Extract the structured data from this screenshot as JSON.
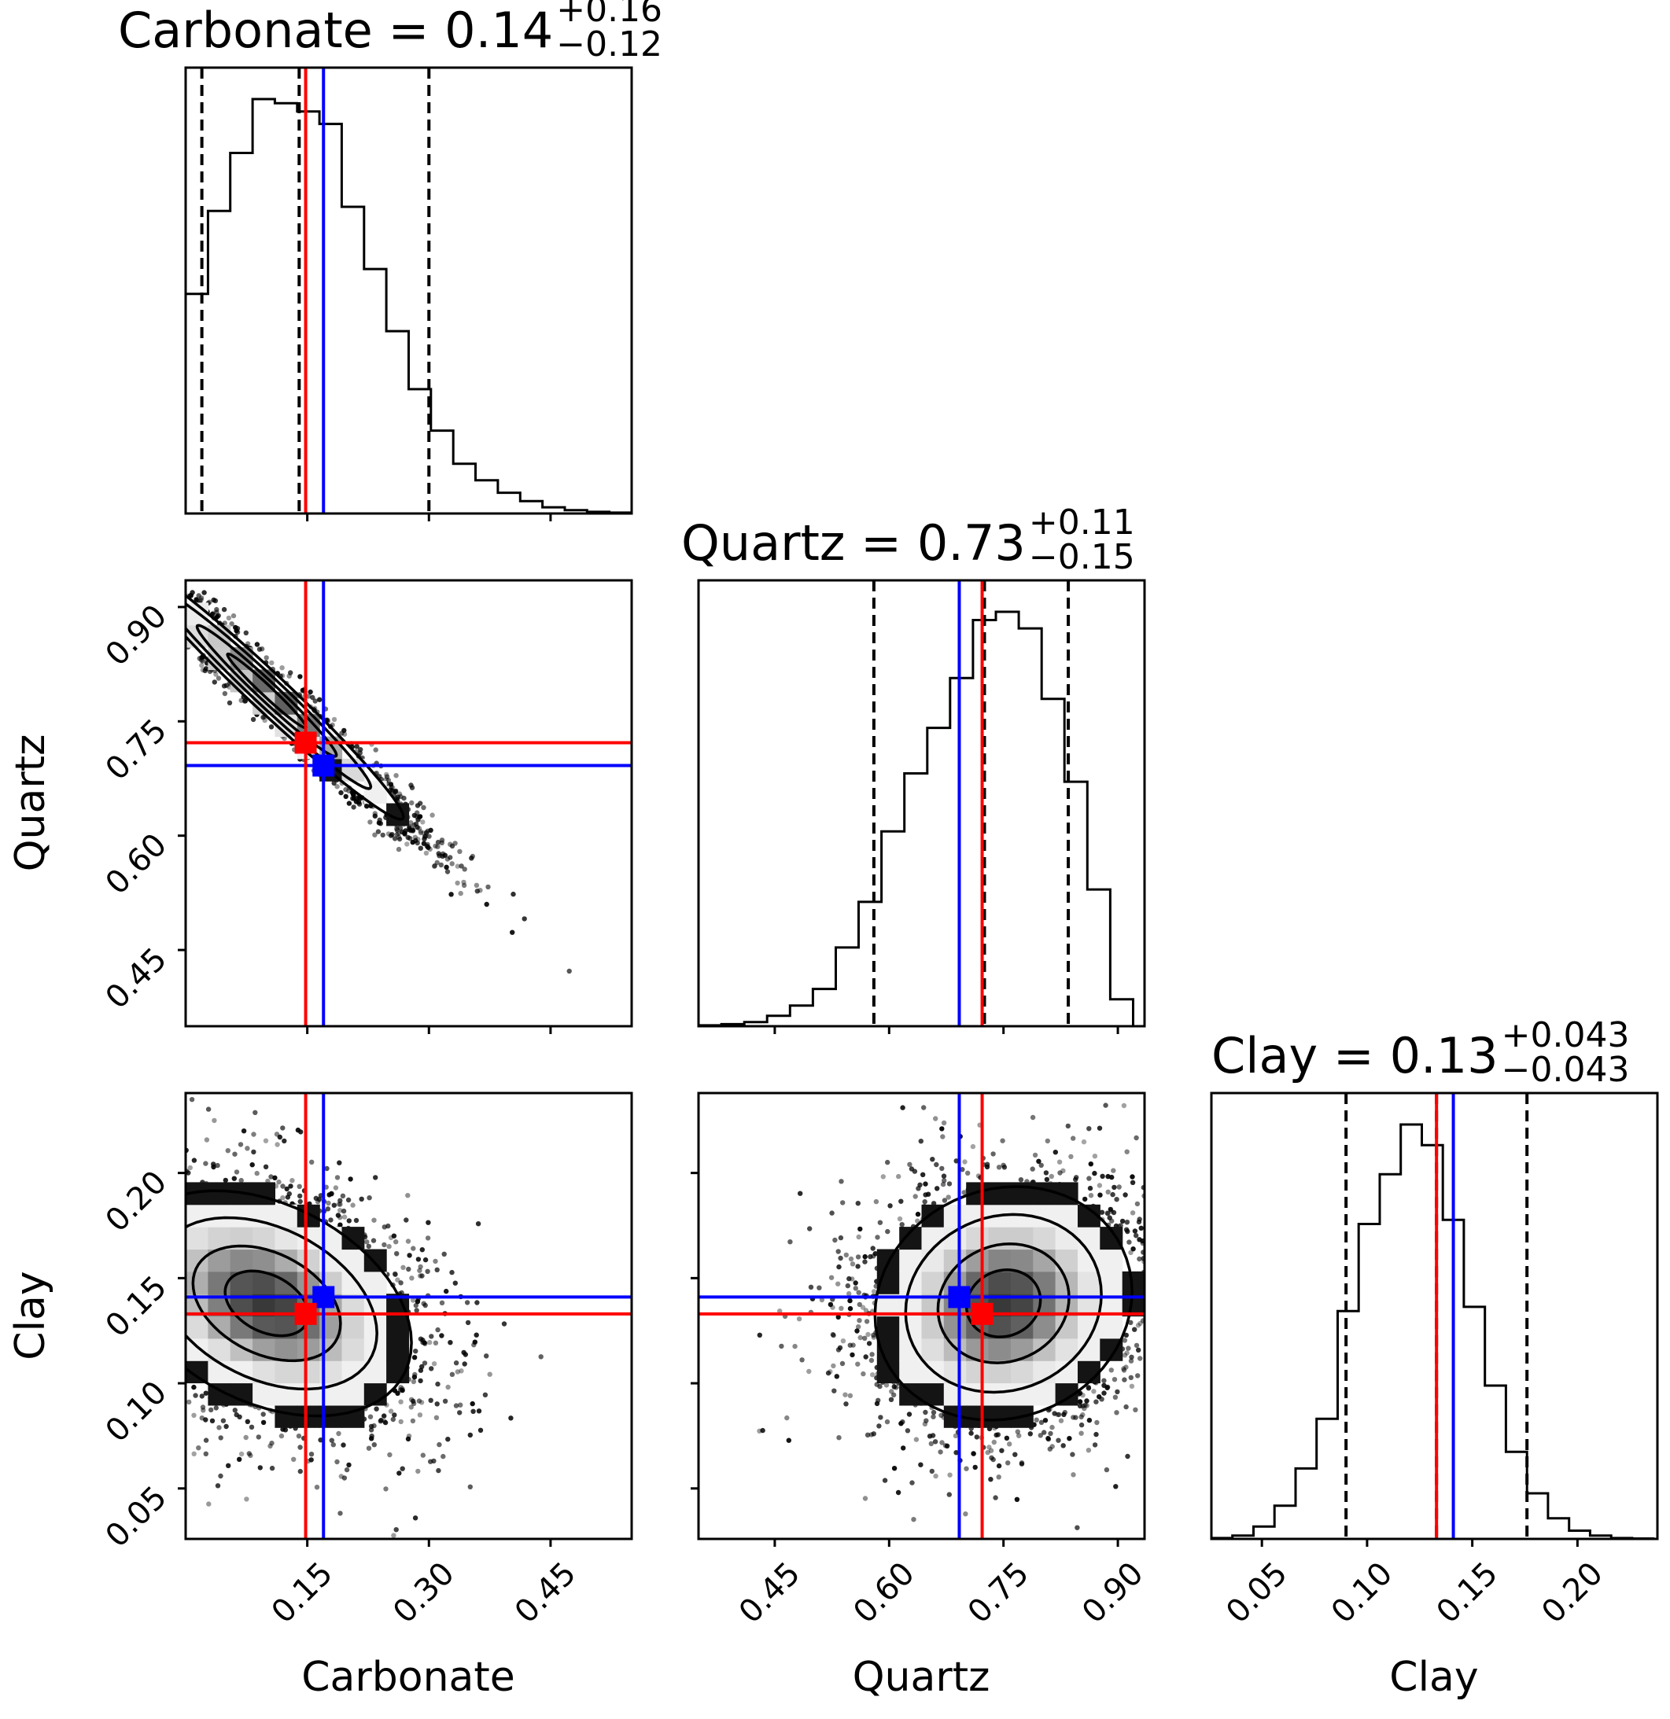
{
  "chart_data": {
    "type": "corner",
    "parameters": [
      "Carbonate",
      "Quartz",
      "Clay"
    ],
    "colors": {
      "truth": "#ff0000",
      "estimate": "#0000ff",
      "hist": "#000000",
      "quantile": "#000000"
    },
    "titles": [
      {
        "param": "Carbonate",
        "prefix": "Carbonate = ",
        "value": "0.14",
        "plus": "+0.16",
        "minus": "−0.12"
      },
      {
        "param": "Quartz",
        "prefix": "Quartz = ",
        "value": "0.73",
        "plus": "+0.11",
        "minus": "−0.15"
      },
      {
        "param": "Clay",
        "prefix": "Clay = ",
        "value": "0.13",
        "plus": "+0.043",
        "minus": "−0.043"
      }
    ],
    "ranges": {
      "Carbonate": [
        0.0,
        0.55
      ],
      "Quartz": [
        0.35,
        0.935
      ],
      "Clay": [
        0.026,
        0.238
      ]
    },
    "ticks": {
      "Carbonate": {
        "values": [
          0.15,
          0.3,
          0.45
        ],
        "labels": [
          "0.15",
          "0.30",
          "0.45"
        ]
      },
      "Quartz": {
        "values": [
          0.45,
          0.6,
          0.75,
          0.9
        ],
        "labels": [
          "0.45",
          "0.60",
          "0.75",
          "0.90"
        ]
      },
      "Clay": {
        "values": [
          0.05,
          0.1,
          0.15,
          0.2
        ],
        "labels": [
          "0.05",
          "0.10",
          "0.15",
          "0.20"
        ]
      }
    },
    "truth": {
      "Carbonate": 0.148,
      "Quartz": 0.722,
      "Clay": 0.133
    },
    "estimate": {
      "Carbonate": 0.17,
      "Quartz": 0.692,
      "Clay": 0.141
    },
    "quantiles": {
      "Carbonate": [
        0.02,
        0.14,
        0.3
      ],
      "Quartz": [
        0.58,
        0.725,
        0.835
      ],
      "Clay": [
        0.09,
        0.133,
        0.176
      ]
    },
    "histograms": {
      "Carbonate": {
        "edges": [
          0.0,
          0.0275,
          0.055,
          0.0825,
          0.11,
          0.1375,
          0.165,
          0.1925,
          0.22,
          0.2475,
          0.275,
          0.3025,
          0.33,
          0.3575,
          0.385,
          0.4125,
          0.44,
          0.4675,
          0.495,
          0.5225,
          0.55
        ],
        "counts": [
          0.53,
          0.73,
          0.87,
          1.0,
          0.99,
          0.97,
          0.94,
          0.74,
          0.59,
          0.44,
          0.3,
          0.2,
          0.12,
          0.08,
          0.05,
          0.03,
          0.015,
          0.008,
          0.004,
          0.002
        ]
      },
      "Quartz": {
        "edges": [
          0.35,
          0.38,
          0.41,
          0.44,
          0.47,
          0.5,
          0.53,
          0.56,
          0.59,
          0.62,
          0.65,
          0.68,
          0.71,
          0.74,
          0.77,
          0.8,
          0.83,
          0.86,
          0.89,
          0.92
        ],
        "counts": [
          0.002,
          0.005,
          0.01,
          0.025,
          0.05,
          0.09,
          0.19,
          0.3,
          0.47,
          0.61,
          0.72,
          0.84,
          0.98,
          1.0,
          0.96,
          0.79,
          0.59,
          0.33,
          0.065
        ]
      },
      "Clay": {
        "edges": [
          0.026,
          0.036,
          0.046,
          0.056,
          0.066,
          0.076,
          0.086,
          0.096,
          0.106,
          0.116,
          0.126,
          0.136,
          0.146,
          0.156,
          0.166,
          0.176,
          0.186,
          0.196,
          0.206,
          0.216,
          0.226,
          0.236
        ],
        "counts": [
          0.002,
          0.008,
          0.03,
          0.08,
          0.17,
          0.29,
          0.55,
          0.76,
          0.88,
          1.0,
          0.95,
          0.77,
          0.56,
          0.37,
          0.21,
          0.11,
          0.05,
          0.02,
          0.008,
          0.002,
          0.001
        ]
      }
    },
    "joint": {
      "Carbonate-Quartz": {
        "center": [
          0.1,
          0.79
        ],
        "std": [
          0.085,
          0.085
        ],
        "corr": -0.98
      },
      "Carbonate-Clay": {
        "center": [
          0.1,
          0.138
        ],
        "std": [
          0.09,
          0.027
        ],
        "corr": -0.35
      },
      "Quartz-Clay": {
        "center": [
          0.75,
          0.138
        ],
        "std": [
          0.085,
          0.028
        ],
        "corr": 0.1
      }
    }
  }
}
